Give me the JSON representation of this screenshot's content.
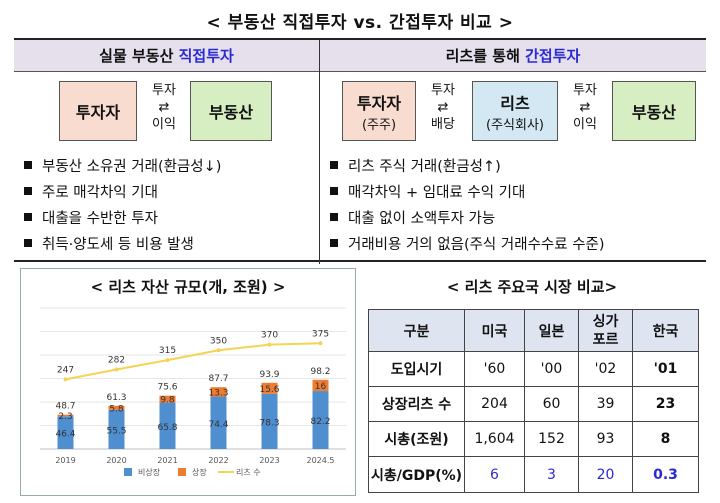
{
  "title": "< 부동산 직접투자 vs. 간접투자 비교 >",
  "left": {
    "header_pre": "실물 부동산 ",
    "header_hl": "직접투자",
    "investor": "투자자",
    "arrow_top": "투자",
    "arrow_glyph": "⇄",
    "arrow_bottom": "이익",
    "asset": "부동산",
    "bullets": [
      "부동산 소유권 거래(환금성↓)",
      "주로 매각차익 기대",
      "대출을 수반한 투자",
      "취득·양도세 등 비용 발생"
    ]
  },
  "right": {
    "header_pre": "리츠를 통해 ",
    "header_hl": "간접투자",
    "investor": "투자자",
    "investor_sub": "(주주)",
    "arrow1_top": "투자",
    "arrow1_bottom": "배당",
    "reits": "리츠",
    "reits_sub": "(주식회사)",
    "arrow2_top": "투자",
    "arrow2_bottom": "이익",
    "arrow_glyph": "⇄",
    "asset": "부동산",
    "bullets": [
      "리츠 주식 거래(환금성↑)",
      "매각차익 + 임대료 수익 기대",
      "대출 없이 소액투자 가능",
      "거래비용 거의 없음(주식 거래수수료 수준)"
    ]
  },
  "chart_data": {
    "type": "bar",
    "title": "< 리츠 자산 규모(개, 조원) >",
    "categories": [
      "2019",
      "2020",
      "2021",
      "2022",
      "2023",
      "2024.5"
    ],
    "series": [
      {
        "name": "비상장",
        "values": [
          46.4,
          55.5,
          65.8,
          74.4,
          78.3,
          82.2
        ],
        "color": "#4f8fd0"
      },
      {
        "name": "상장",
        "values": [
          2.3,
          5.8,
          9.8,
          13.3,
          15.6,
          16
        ],
        "color": "#ed7d31"
      },
      {
        "name": "리츠 수",
        "values": [
          247,
          282,
          315,
          350,
          370,
          375
        ],
        "color": "#f5d353"
      }
    ],
    "totals": [
      48.7,
      61.3,
      75.6,
      87.7,
      93.9,
      98.2
    ],
    "legend": "bottom",
    "bar_ylim": [
      0,
      200
    ],
    "line_ylim": [
      0,
      500
    ]
  },
  "market": {
    "title": "< 리츠 주요국 시장 비교>",
    "headers": [
      "구분",
      "미국",
      "일본",
      "싱가\n포르",
      "한국"
    ],
    "rows": [
      {
        "label": "도입시기",
        "values": [
          "'60",
          "'00",
          "'02",
          "'01"
        ]
      },
      {
        "label": "상장리츠 수",
        "values": [
          "204",
          "60",
          "39",
          "23"
        ]
      },
      {
        "label": "시총(조원)",
        "values": [
          "1,604",
          "152",
          "93",
          "8"
        ]
      },
      {
        "label": "시총/GDP(%)",
        "values": [
          "6",
          "3",
          "20",
          "0.3"
        ]
      }
    ]
  }
}
